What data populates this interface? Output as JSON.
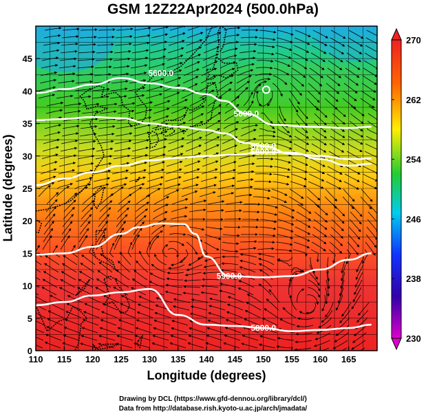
{
  "title": "GSM 12Z22Apr2024 (500.0hPa)",
  "xlabel": "Longitude (degrees)",
  "ylabel": "Latitude  (degrees)",
  "credits": [
    "Drawing by DCL (https://www.gfd-dennou.org/library/dcl/)",
    "Data from http://database.rish.kyoto-u.ac.jp/arch/jmadata/"
  ],
  "contour_labels": [
    "5600.0",
    "5700.0",
    "5800.0",
    "5900.0",
    "5800.0",
    "5600.0"
  ],
  "chart_data": {
    "type": "heatmap",
    "title": "GSM 12Z22Apr2024 (500.0hPa)",
    "xlabel": "Longitude (degrees)",
    "ylabel": "Latitude  (degrees)",
    "xlim": [
      110,
      170
    ],
    "ylim": [
      0,
      50
    ],
    "x_ticks": [
      "110",
      "115",
      "120",
      "125",
      "130",
      "135",
      "140",
      "145",
      "150",
      "155",
      "160",
      "165"
    ],
    "y_ticks": [
      "0",
      "5",
      "10",
      "15",
      "20",
      "25",
      "30",
      "35",
      "40",
      "45"
    ],
    "colorbar": {
      "range": [
        230,
        270
      ],
      "ticks": [
        "230",
        "238",
        "246",
        "254",
        "262",
        "270"
      ],
      "colors": [
        "#dd00cc",
        "#3300aa",
        "#1133ff",
        "#00ccee",
        "#22cc33",
        "#ffee00",
        "#ff6600",
        "#ee2222"
      ]
    },
    "height_contours": [
      {
        "label": "5600.0",
        "lon": [
          110,
          115,
          120,
          125,
          130,
          135,
          140,
          143,
          147,
          152,
          158,
          165,
          169
        ],
        "lat": [
          39.7,
          40.3,
          41.0,
          42.0,
          41.2,
          40.5,
          39.5,
          38.5,
          36.5,
          34.8,
          34.5,
          34.3,
          34.5
        ]
      },
      {
        "label": "5700.0",
        "lon": [
          110,
          115,
          120,
          125,
          130,
          135,
          140,
          143,
          147,
          150,
          155,
          160,
          165,
          169
        ],
        "lat": [
          35.5,
          35.7,
          36.0,
          35.8,
          35.0,
          34.5,
          34.0,
          33.5,
          32.0,
          31.5,
          30.3,
          30.0,
          29.5,
          29.6
        ]
      },
      {
        "label": "5800.0",
        "lon": [
          110,
          115,
          120,
          125,
          130,
          135,
          140,
          145,
          150,
          155,
          160,
          165,
          169
        ],
        "lat": [
          25.5,
          26.5,
          27.5,
          28.5,
          29.3,
          29.7,
          30.0,
          30.2,
          30.6,
          30.5,
          29.5,
          28.5,
          28.8
        ]
      },
      {
        "label": "5900.0",
        "lon": [
          110,
          115,
          120,
          125,
          128,
          132,
          136,
          138,
          140,
          144,
          150,
          155,
          160,
          165,
          169
        ],
        "lat": [
          14.8,
          15.0,
          16.0,
          18.0,
          19.0,
          19.6,
          19.5,
          18.0,
          14.5,
          11.5,
          11.3,
          11.5,
          12.5,
          14.0,
          15.0
        ]
      },
      {
        "label": "5800.0",
        "lon": [
          110,
          115,
          120,
          125,
          130,
          135,
          140,
          145,
          150,
          155,
          160,
          165,
          169
        ],
        "lat": [
          7.0,
          7.5,
          8.5,
          9.0,
          9.5,
          5.5,
          4.0,
          3.8,
          3.5,
          3.0,
          3.2,
          3.5,
          4.0
        ]
      }
    ],
    "vortices": [
      {
        "lon": 133.5,
        "lat": 15.0
      },
      {
        "lon": 158.0,
        "lat": 7.0
      },
      {
        "lon": 150.5,
        "lat": 40.2
      }
    ]
  }
}
